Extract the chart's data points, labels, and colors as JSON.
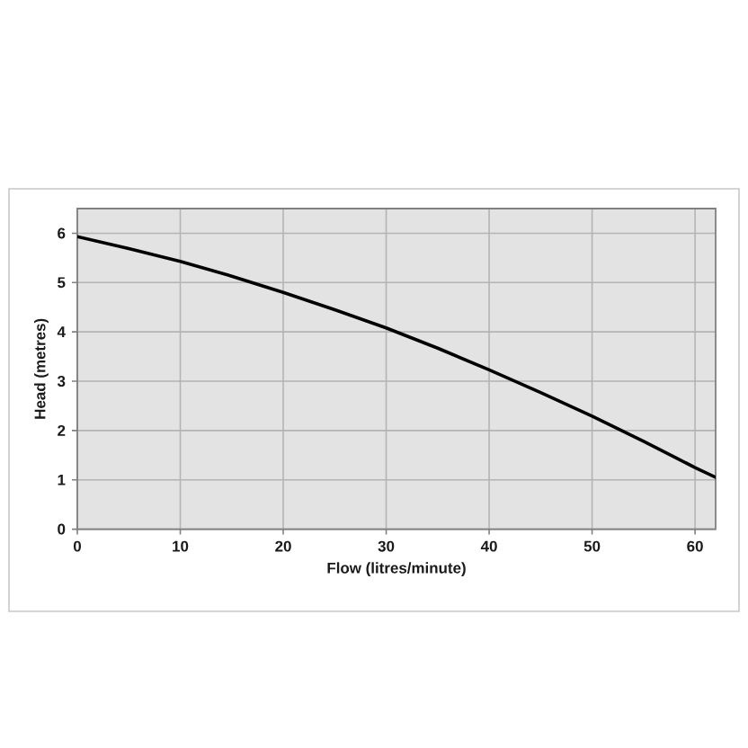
{
  "chart_data": {
    "type": "line",
    "xlabel": "Flow (litres/minute)",
    "ylabel": "Head (metres)",
    "x": [
      0,
      5,
      10,
      15,
      20,
      25,
      30,
      35,
      40,
      45,
      50,
      55,
      60,
      62
    ],
    "series": [
      {
        "color": "#000000",
        "values": [
          5.93,
          5.69,
          5.43,
          5.13,
          4.8,
          4.45,
          4.08,
          3.67,
          3.23,
          2.77,
          2.29,
          1.78,
          1.25,
          1.05
        ]
      }
    ],
    "xlim": [
      0,
      62
    ],
    "ylim": [
      0,
      6.5
    ],
    "xticks": [
      0,
      10,
      20,
      30,
      40,
      50,
      60
    ],
    "yticks": [
      0,
      1,
      2,
      3,
      4,
      5,
      6
    ],
    "grid": true
  }
}
